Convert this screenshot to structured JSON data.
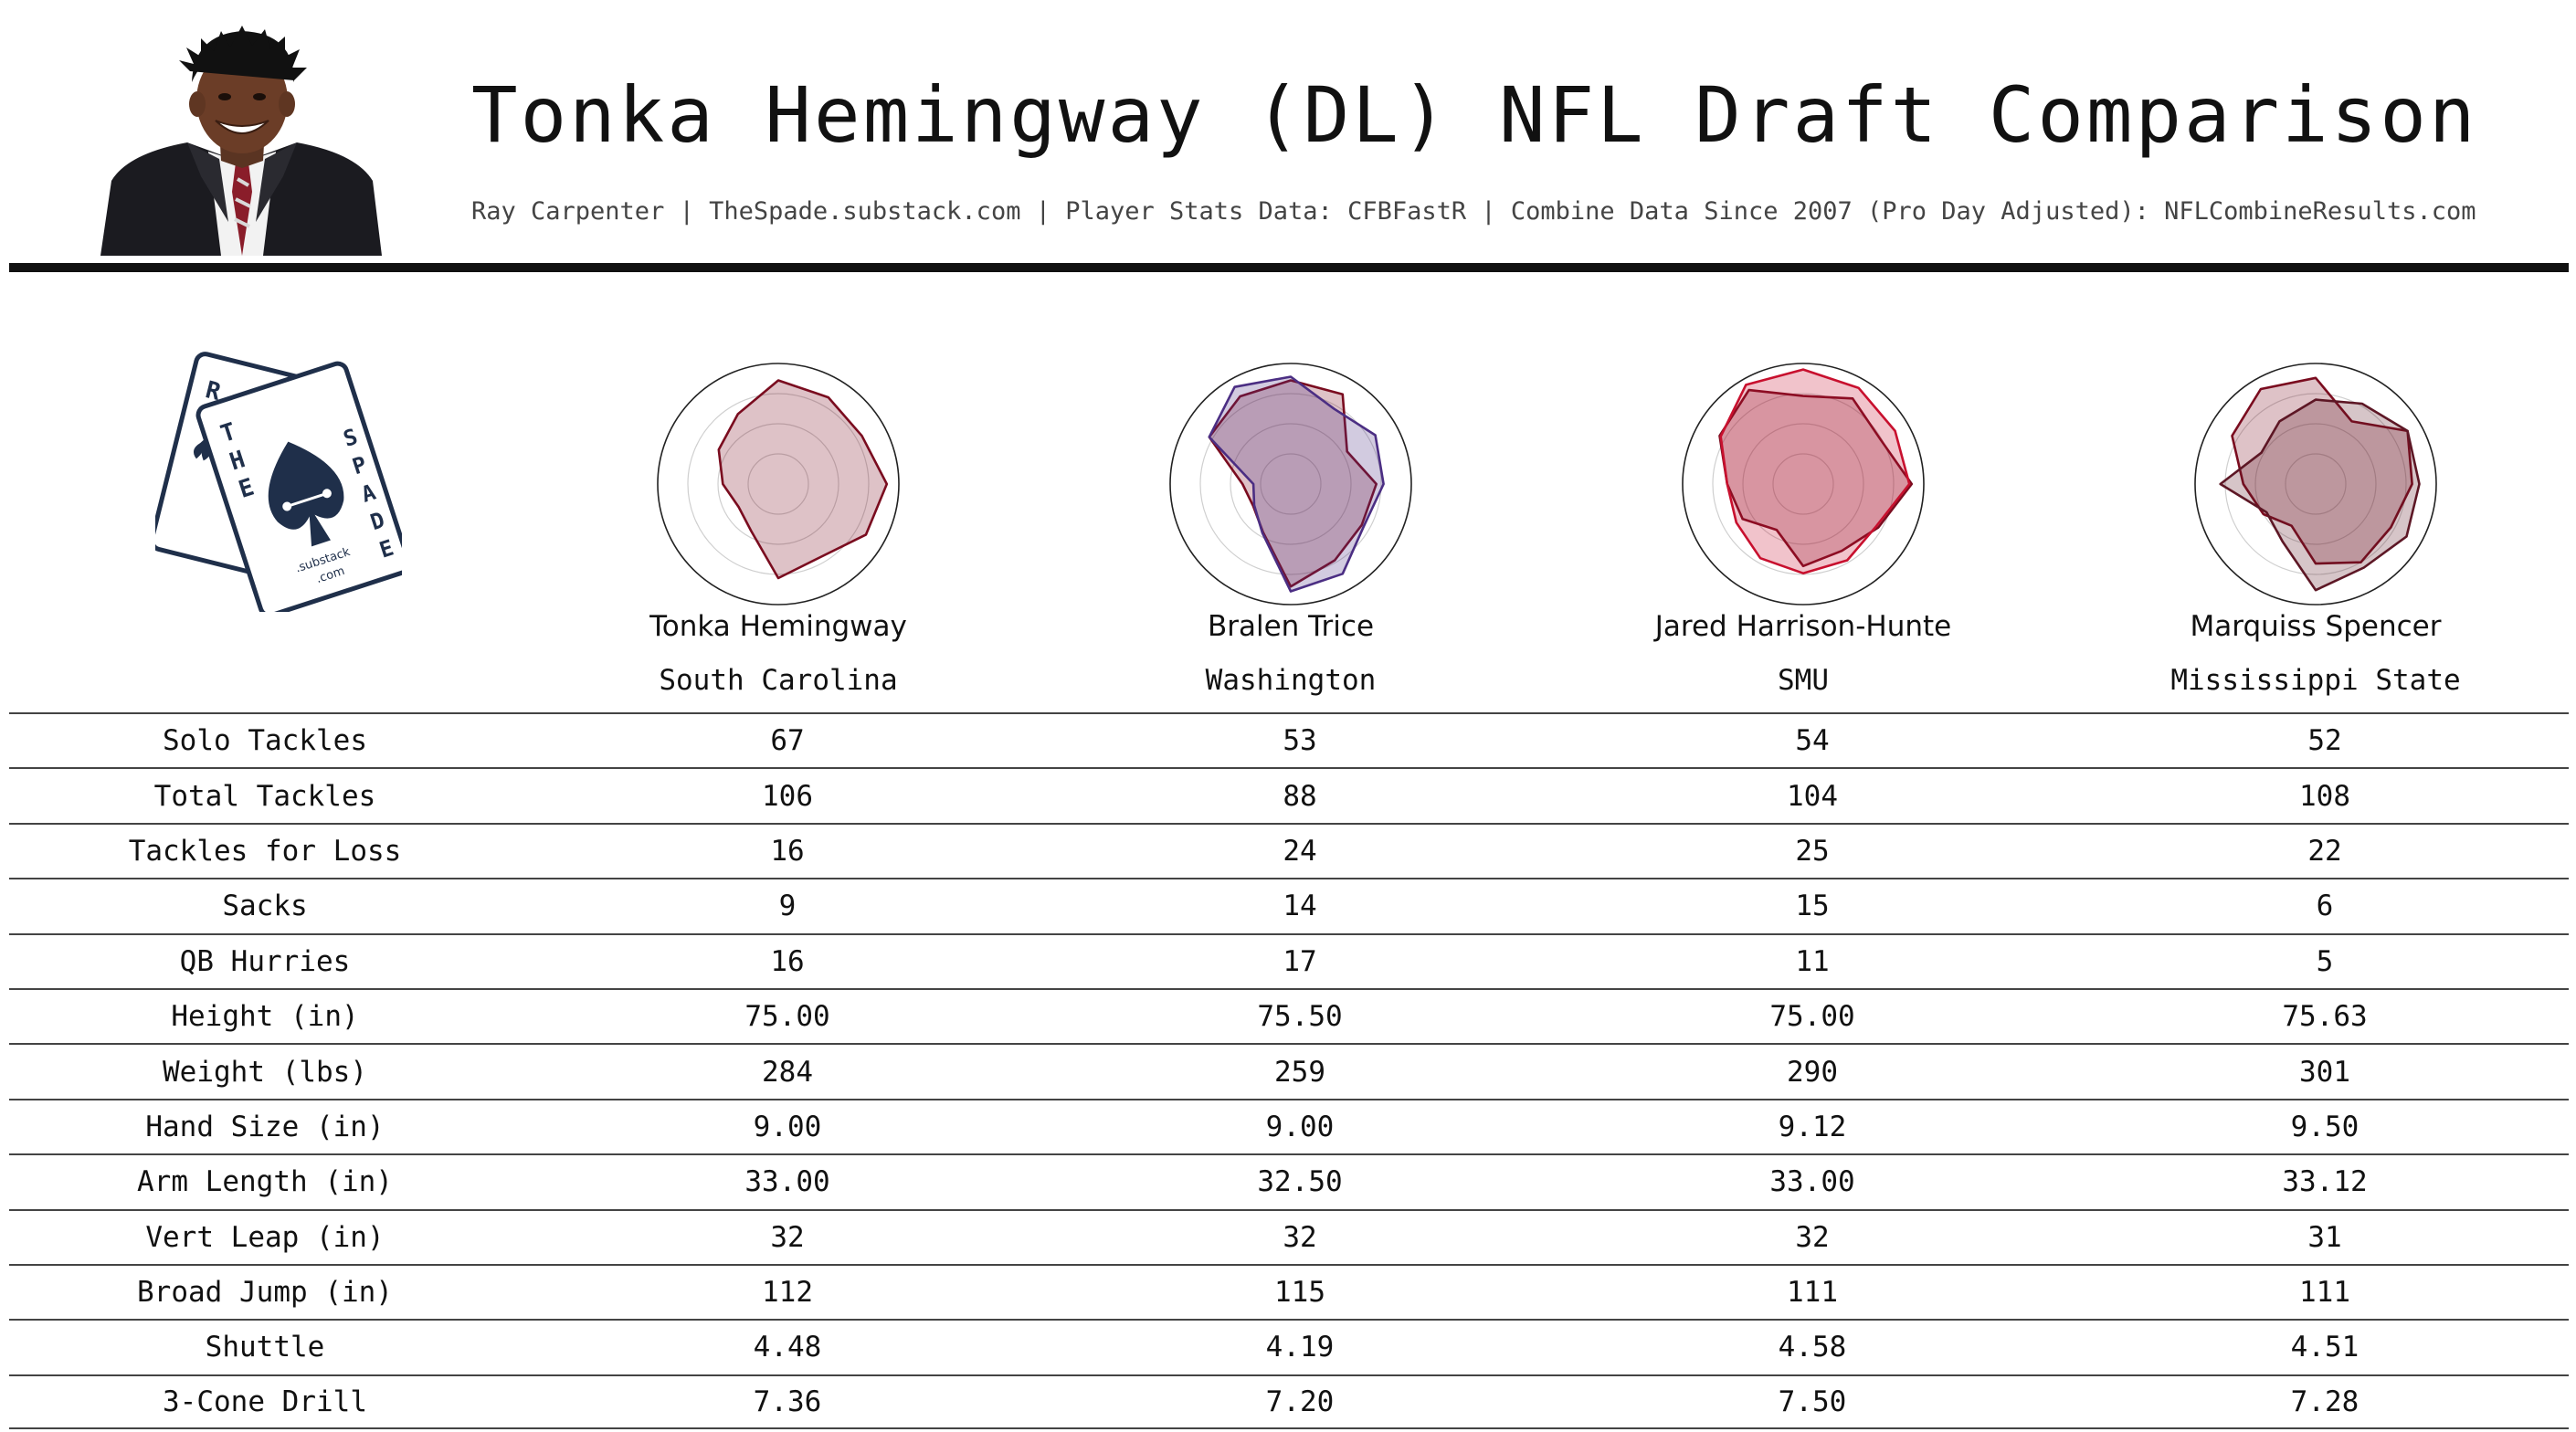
{
  "header": {
    "title": "Tonka Hemingway (DL) NFL Draft Comparison",
    "subtitle": "Ray Carpenter | TheSpade.substack.com | Player Stats Data: CFBFastR | Combine Data Since 2007 (Pro Day Adjusted): NFLCombineResults.com",
    "photo_icon": "player-headshot",
    "logo_icon": "the-spade-cards-logo",
    "logo_text": {
      "left_card": "RC",
      "right_card_top": "THE",
      "right_card_side": "SPADE",
      "site": ".substack",
      "tld": ".com"
    }
  },
  "players": [
    {
      "name": "Tonka Hemingway",
      "school": "South Carolina"
    },
    {
      "name": "Bralen Trice",
      "school": "Washington"
    },
    {
      "name": "Jared Harrison-Hunte",
      "school": "SMU"
    },
    {
      "name": "Marquiss Spencer",
      "school": "Mississippi State"
    }
  ],
  "colors": {
    "hemingway": "#7a0c1f",
    "trice": "#4b2e83",
    "harrison_hunte": "#c8102e",
    "spencer": "#5d1725",
    "logo": "#1f2f4a"
  },
  "stats_table": {
    "rows": [
      {
        "label": "Solo Tackles",
        "values": [
          "67",
          "53",
          "54",
          "52"
        ]
      },
      {
        "label": "Total Tackles",
        "values": [
          "106",
          "88",
          "104",
          "108"
        ]
      },
      {
        "label": "Tackles for Loss",
        "values": [
          "16",
          "24",
          "25",
          "22"
        ]
      },
      {
        "label": "Sacks",
        "values": [
          "9",
          "14",
          "15",
          "6"
        ]
      },
      {
        "label": "QB Hurries",
        "values": [
          "16",
          "17",
          "11",
          "5"
        ]
      },
      {
        "label": "Height (in)",
        "values": [
          "75.00",
          "75.50",
          "75.00",
          "75.63"
        ]
      },
      {
        "label": "Weight (lbs)",
        "values": [
          "284",
          "259",
          "290",
          "301"
        ]
      },
      {
        "label": "Hand Size (in)",
        "values": [
          "9.00",
          "9.00",
          "9.12",
          "9.50"
        ]
      },
      {
        "label": "Arm Length (in)",
        "values": [
          "33.00",
          "32.50",
          "33.00",
          "33.12"
        ]
      },
      {
        "label": "Vert Leap (in)",
        "values": [
          "32",
          "32",
          "32",
          "31"
        ]
      },
      {
        "label": "Broad Jump (in)",
        "values": [
          "112",
          "115",
          "111",
          "111"
        ]
      },
      {
        "label": "Shuttle",
        "values": [
          "4.48",
          "4.19",
          "4.58",
          "4.51"
        ]
      },
      {
        "label": "3-Cone Drill",
        "values": [
          "7.36",
          "7.20",
          "7.50",
          "7.28"
        ]
      }
    ]
  },
  "chart_data": [
    {
      "type": "radar",
      "player": "Tonka Hemingway",
      "series": [
        {
          "values": [
            0.86,
            0.83,
            0.8,
            0.9,
            0.84,
            0.7,
            0.78,
            0.45,
            0.38,
            0.46,
            0.57,
            0.67
          ]
        }
      ]
    },
    {
      "type": "radar",
      "player": "Bralen Trice",
      "series": [
        {
          "values": [
            0.86,
            0.86,
            0.54,
            0.71,
            0.68,
            0.73,
            0.85,
            0.46,
            0.36,
            0.4,
            0.78,
            0.84
          ]
        },
        {
          "values": [
            0.89,
            0.72,
            0.81,
            0.77,
            0.7,
            0.86,
            0.89,
            0.47,
            0.35,
            0.31,
            0.78,
            0.93
          ]
        }
      ]
    },
    {
      "type": "radar",
      "player": "Jared Harrison-Hunte",
      "series": [
        {
          "values": [
            0.73,
            0.82,
            0.74,
            0.9,
            0.72,
            0.64,
            0.68,
            0.44,
            0.58,
            0.63,
            0.8,
            0.9
          ]
        },
        {
          "values": [
            0.95,
            0.92,
            0.88,
            0.88,
            0.7,
            0.73,
            0.74,
            0.71,
            0.64,
            0.63,
            0.79,
            0.95
          ]
        }
      ]
    },
    {
      "type": "radar",
      "player": "Marquiss Spencer",
      "series": [
        {
          "values": [
            0.88,
            0.6,
            0.88,
            0.8,
            0.72,
            0.75,
            0.66,
            0.4,
            0.5,
            0.6,
            0.8,
            0.91
          ]
        },
        {
          "values": [
            0.7,
            0.77,
            0.88,
            0.86,
            0.87,
            0.8,
            0.88,
            0.55,
            0.47,
            0.79,
            0.52,
            0.6
          ]
        }
      ]
    }
  ]
}
